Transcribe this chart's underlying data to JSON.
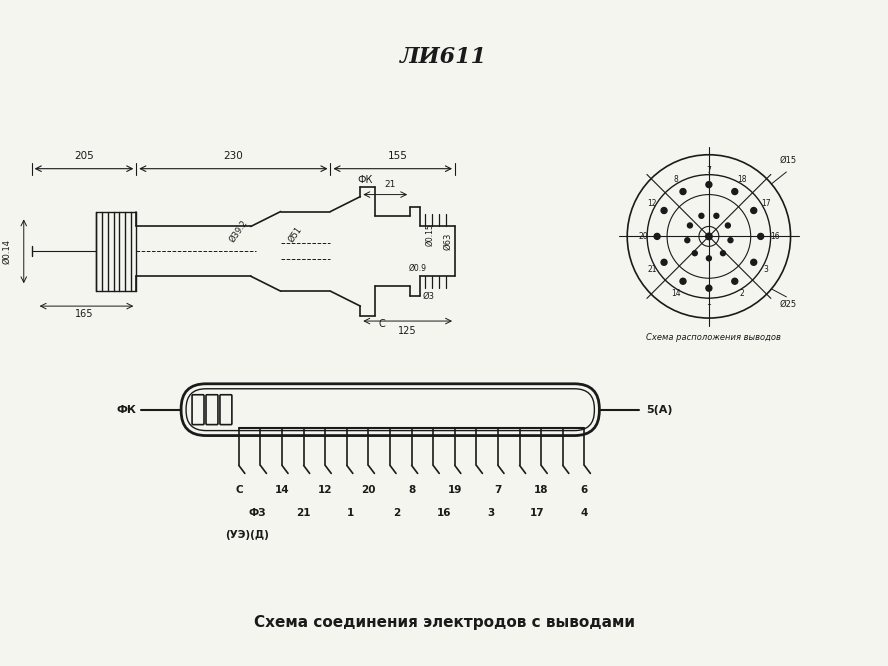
{
  "title": "ЛИ611",
  "bg_color": "#f5f5f0",
  "line_color": "#1a1a1a",
  "bottom_caption": "Схема соединения электродов с выводами",
  "circle_caption": "Схема расположения выводов",
  "connector_top_row": [
    "C",
    "14",
    "12",
    "20",
    "8",
    "19",
    "7",
    "18",
    "6"
  ],
  "connector_bot_row": [
    "ФЗ",
    "21",
    "1",
    "2",
    "16",
    "3",
    "17",
    "4"
  ],
  "connector_extra": "(УЭ)(Д)"
}
